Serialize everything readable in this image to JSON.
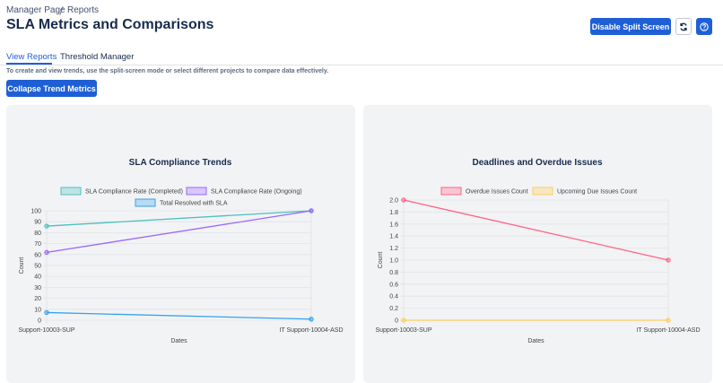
{
  "breadcrumb": [
    "Manager Page",
    "Reports"
  ],
  "title": "SLA Metrics and Comparisons",
  "split_button": "Disable Split Screen",
  "tabs": [
    "View Reports",
    "Threshold Manager"
  ],
  "description": "To create and view trends, use the split-screen mode or select different projects to compare data effectively.",
  "collapse_button": "Collapse Trend Metrics",
  "chart_data": [
    {
      "type": "line",
      "title": "SLA Compliance Trends",
      "categories": [
        "Support-10003-SUP",
        "IT Support-10004-ASD"
      ],
      "series": [
        {
          "name": "SLA Compliance Rate (Completed)",
          "color": "#4bc0c0",
          "values": [
            86,
            100
          ]
        },
        {
          "name": "SLA Compliance Rate (Ongoing)",
          "color": "#9966ff",
          "values": [
            62,
            100
          ]
        },
        {
          "name": "Total Resolved with SLA",
          "color": "#36a2eb",
          "values": [
            7,
            1
          ]
        }
      ],
      "ylim": [
        0,
        100
      ],
      "yticks": [
        0,
        10,
        20,
        30,
        40,
        50,
        60,
        70,
        80,
        90,
        100
      ],
      "ylabel": "Count",
      "xlabel": "Dates",
      "grid": true,
      "legend": "top"
    },
    {
      "type": "line",
      "title": "Deadlines and Overdue Issues",
      "categories": [
        "Support-10003-SUP",
        "IT Support-10004-ASD"
      ],
      "series": [
        {
          "name": "Overdue Issues Count",
          "color": "#ff6384",
          "values": [
            2,
            1
          ]
        },
        {
          "name": "Upcoming Due Issues Count",
          "color": "#ffcd56",
          "values": [
            0,
            0
          ]
        }
      ],
      "ylim": [
        0,
        2
      ],
      "yticks": [
        0,
        0.2,
        0.4,
        0.6,
        0.8,
        {
          "value": 1,
          "label": "1.0"
        },
        1.2,
        1.4,
        1.6,
        1.8,
        {
          "value": 2,
          "label": "2.0"
        }
      ],
      "ylabel": "Count",
      "xlabel": "Dates",
      "grid": true,
      "legend": "top"
    }
  ]
}
